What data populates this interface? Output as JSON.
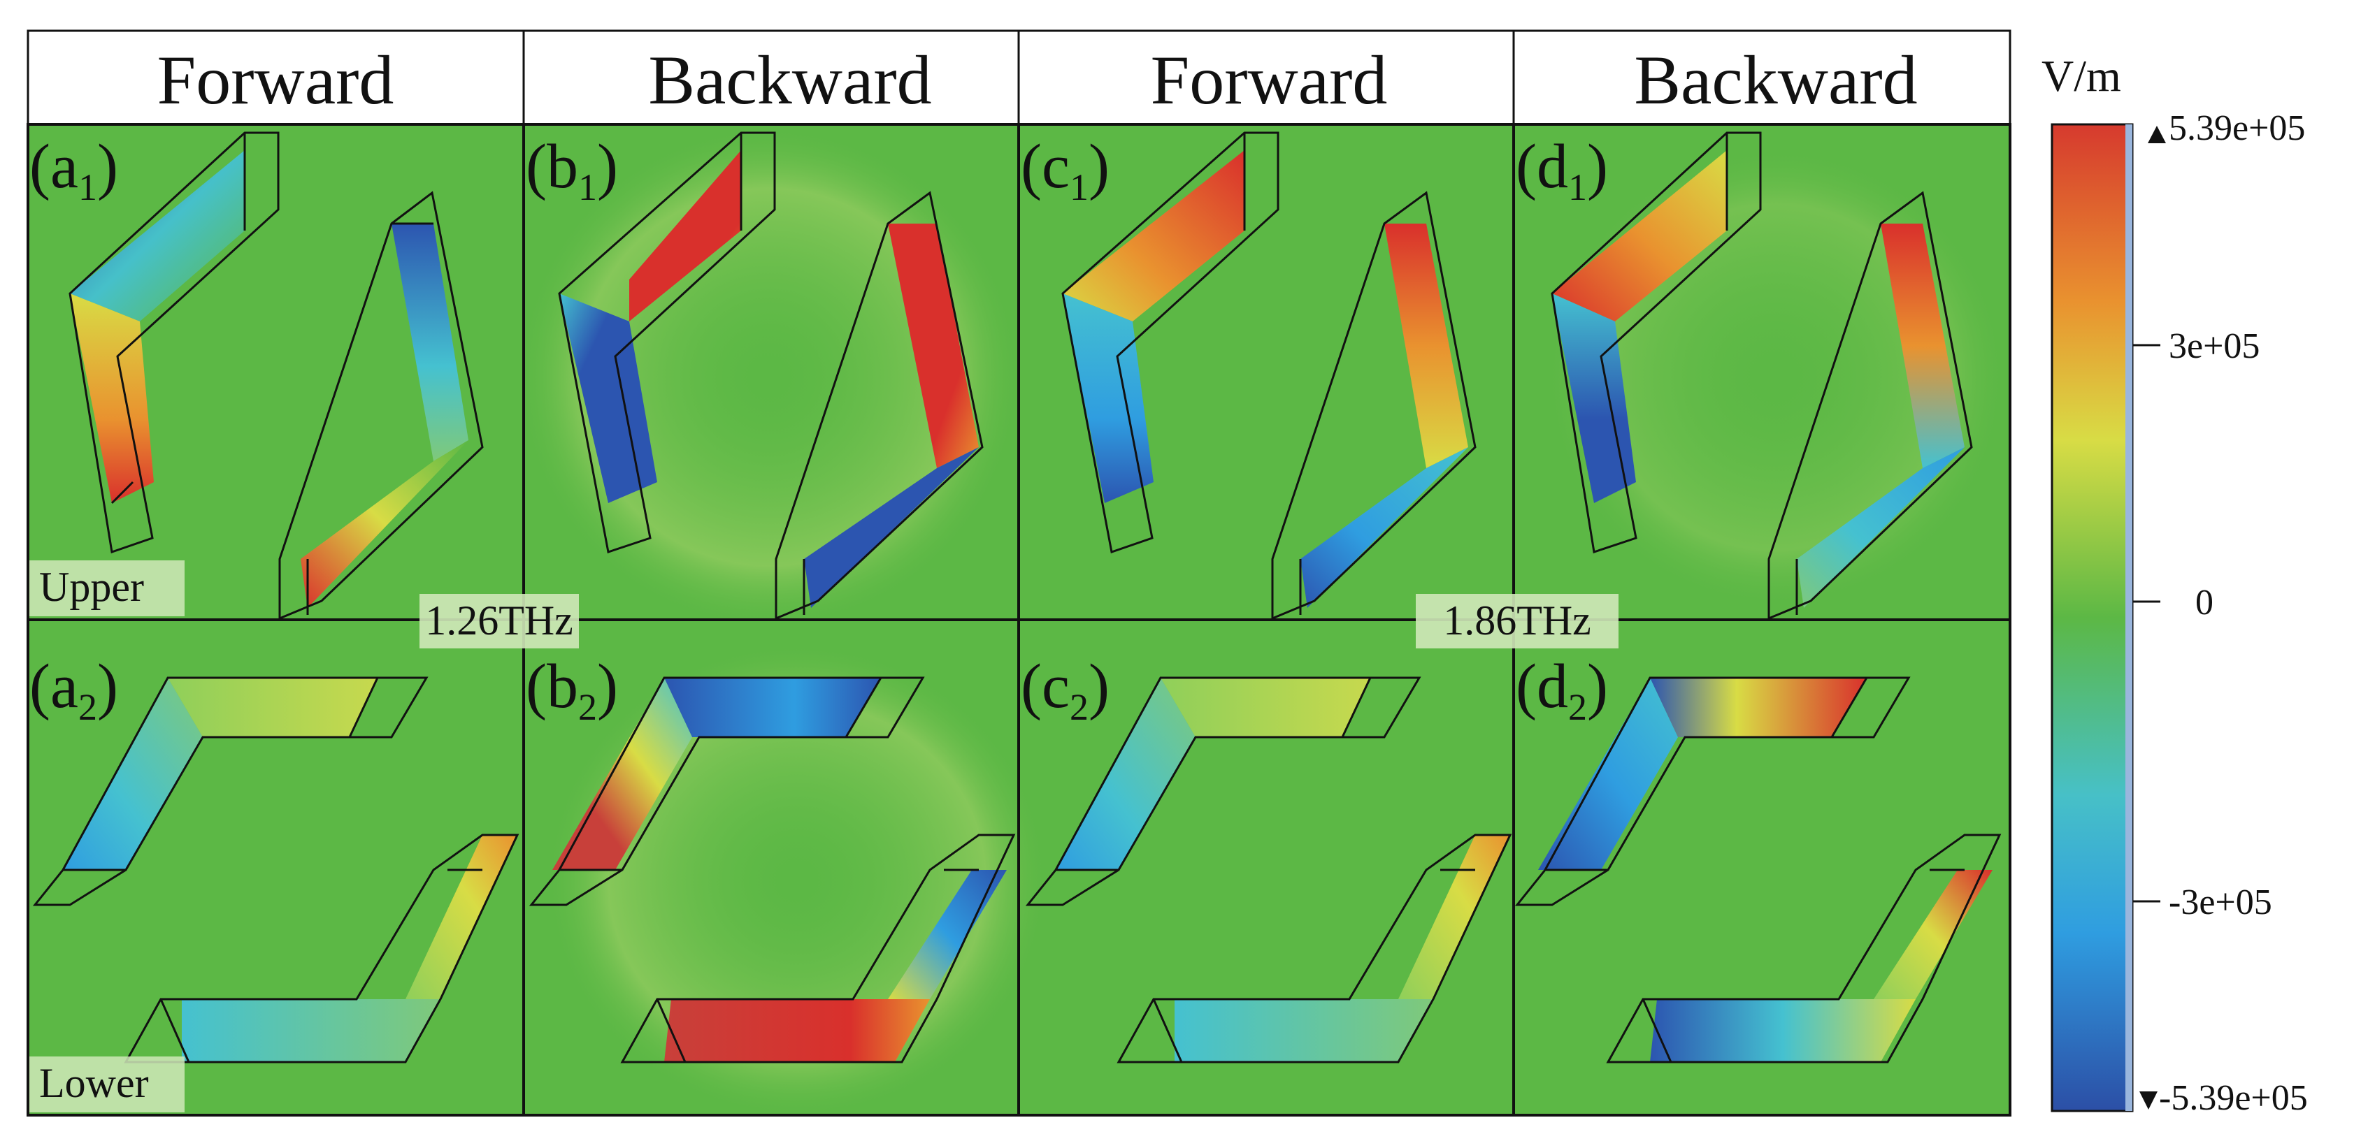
{
  "header": {
    "columns": [
      "Forward",
      "Backward",
      "Forward",
      "Backward"
    ]
  },
  "panels": {
    "upper": [
      {
        "letter": "a",
        "sub": "1"
      },
      {
        "letter": "b",
        "sub": "1"
      },
      {
        "letter": "c",
        "sub": "1"
      },
      {
        "letter": "d",
        "sub": "1"
      }
    ],
    "lower": [
      {
        "letter": "a",
        "sub": "2"
      },
      {
        "letter": "b",
        "sub": "2"
      },
      {
        "letter": "c",
        "sub": "2"
      },
      {
        "letter": "d",
        "sub": "2"
      }
    ]
  },
  "row_tags": {
    "upper": "Upper",
    "lower": "Lower"
  },
  "frequencies": [
    "1.26THz",
    "1.86THz"
  ],
  "colorbar": {
    "unit": "V/m",
    "max_label": "5.39e+05",
    "tick_labels": [
      "3e+05",
      "0",
      "-3e+05"
    ],
    "min_label": "-5.39e+05",
    "colors": [
      "#d63a2e",
      "#e9922f",
      "#d8dc45",
      "#5cb845",
      "#47c0c7",
      "#2f9de0",
      "#2c4fa6"
    ]
  },
  "colors": {
    "background": "#5cb845",
    "red": "#d9302c",
    "orange": "#e9922f",
    "yellow": "#d8dc45",
    "cyan": "#45c1d0",
    "blue": "#2c55b0"
  }
}
